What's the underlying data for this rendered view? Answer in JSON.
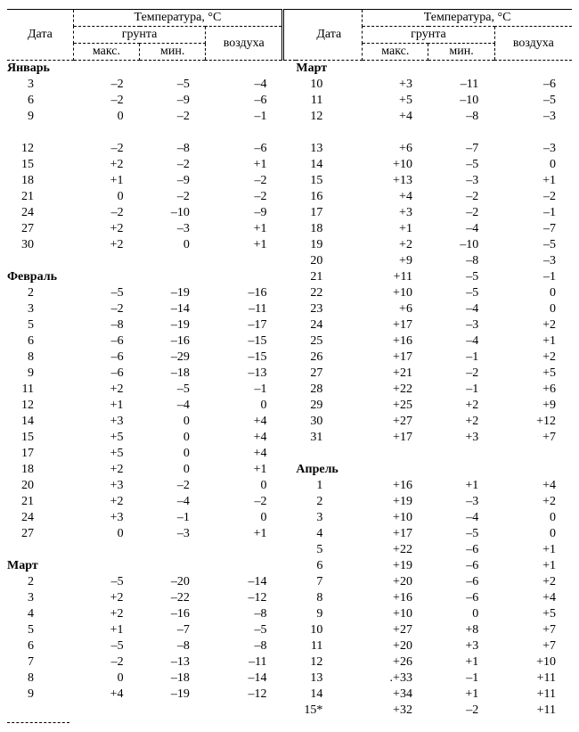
{
  "headers": {
    "date": "Дата",
    "temperature": "Температура, °С",
    "ground": "грунта",
    "air": "воздуха",
    "max": "макс.",
    "min": "мин."
  },
  "left": [
    {
      "month": "Январь"
    },
    {
      "day": "3",
      "max": "–2",
      "min": "–5",
      "air": "–4"
    },
    {
      "day": "6",
      "max": "–2",
      "min": "–9",
      "air": "–6"
    },
    {
      "day": "9",
      "max": "0",
      "min": "–2",
      "air": "–1"
    },
    {
      "gap": true
    },
    {
      "day": "12",
      "max": "–2",
      "min": "–8",
      "air": "–6"
    },
    {
      "day": "15",
      "max": "+2",
      "min": "–2",
      "air": "+1"
    },
    {
      "day": "18",
      "max": "+1",
      "min": "–9",
      "air": "–2"
    },
    {
      "day": "21",
      "max": "0",
      "min": "–2",
      "air": "–2"
    },
    {
      "day": "24",
      "max": "–2",
      "min": "–10",
      "air": "–9"
    },
    {
      "day": "27",
      "max": "+2",
      "min": "–3",
      "air": "+1"
    },
    {
      "day": "30",
      "max": "+2",
      "min": "0",
      "air": "+1"
    },
    {
      "gap": true
    },
    {
      "month": "Февраль"
    },
    {
      "day": "2",
      "max": "–5",
      "min": "–19",
      "air": "–16"
    },
    {
      "day": "3",
      "max": "–2",
      "min": "–14",
      "air": "–11"
    },
    {
      "day": "5",
      "max": "–8",
      "min": "–19",
      "air": "–17"
    },
    {
      "day": "6",
      "max": "–6",
      "min": "–16",
      "air": "–15"
    },
    {
      "day": "8",
      "max": "–6",
      "min": "–29",
      "air": "–15"
    },
    {
      "day": "9",
      "max": "–6",
      "min": "–18",
      "air": "–13"
    },
    {
      "day": "11",
      "max": "+2",
      "min": "–5",
      "air": "–1"
    },
    {
      "day": "12",
      "max": "+1",
      "min": "–4",
      "air": "0"
    },
    {
      "day": "14",
      "max": "+3",
      "min": "0",
      "air": "+4"
    },
    {
      "day": "15",
      "max": "+5",
      "min": "0",
      "air": "+4"
    },
    {
      "day": "17",
      "max": "+5",
      "min": "0",
      "air": "+4"
    },
    {
      "day": "18",
      "max": "+2",
      "min": "0",
      "air": "+1"
    },
    {
      "day": "20",
      "max": "+3",
      "min": "–2",
      "air": "0"
    },
    {
      "day": "21",
      "max": "+2",
      "min": "–4",
      "air": "–2"
    },
    {
      "day": "24",
      "max": "+3",
      "min": "–1",
      "air": "0"
    },
    {
      "day": "27",
      "max": "0",
      "min": "–3",
      "air": "+1"
    },
    {
      "gap": true
    },
    {
      "month": "Март"
    },
    {
      "day": "2",
      "max": "–5",
      "min": "–20",
      "air": "–14"
    },
    {
      "day": "3",
      "max": "+2",
      "min": "–22",
      "air": "–12"
    },
    {
      "day": "4",
      "max": "+2",
      "min": "–16",
      "air": "–8"
    },
    {
      "day": "5",
      "max": "+1",
      "min": "–7",
      "air": "–5"
    },
    {
      "day": "6",
      "max": "–5",
      "min": "–8",
      "air": "–8"
    },
    {
      "day": "7",
      "max": "–2",
      "min": "–13",
      "air": "–11"
    },
    {
      "day": "8",
      "max": "0",
      "min": "–18",
      "air": "–14"
    },
    {
      "day": "9",
      "max": "+4",
      "min": "–19",
      "air": "–12"
    }
  ],
  "right": [
    {
      "month": "Март"
    },
    {
      "day": "10",
      "max": "+3",
      "min": "–11",
      "air": "–6"
    },
    {
      "day": "11",
      "max": "+5",
      "min": "–10",
      "air": "–5"
    },
    {
      "day": "12",
      "max": "+4",
      "min": "–8",
      "air": "–3"
    },
    {
      "gap": true
    },
    {
      "day": "13",
      "max": "+6",
      "min": "–7",
      "air": "–3"
    },
    {
      "day": "14",
      "max": "+10",
      "min": "–5",
      "air": "0"
    },
    {
      "day": "15",
      "max": "+13",
      "min": "–3",
      "air": "+1"
    },
    {
      "day": "16",
      "max": "+4",
      "min": "–2",
      "air": "–2"
    },
    {
      "day": "17",
      "max": "+3",
      "min": "–2",
      "air": "–1"
    },
    {
      "day": "18",
      "max": "+1",
      "min": "–4",
      "air": "–7"
    },
    {
      "day": "19",
      "max": "+2",
      "min": "–10",
      "air": "–5"
    },
    {
      "day": "20",
      "max": "+9",
      "min": "–8",
      "air": "–3"
    },
    {
      "day": "21",
      "max": "+11",
      "min": "–5",
      "air": "–1"
    },
    {
      "day": "22",
      "max": "+10",
      "min": "–5",
      "air": "0"
    },
    {
      "day": "23",
      "max": "+6",
      "min": "–4",
      "air": "0"
    },
    {
      "day": "24",
      "max": "+17",
      "min": "–3",
      "air": "+2"
    },
    {
      "day": "25",
      "max": "+16",
      "min": "–4",
      "air": "+1"
    },
    {
      "day": "26",
      "max": "+17",
      "min": "–1",
      "air": "+2"
    },
    {
      "day": "27",
      "max": "+21",
      "min": "–2",
      "air": "+5"
    },
    {
      "day": "28",
      "max": "+22",
      "min": "–1",
      "air": "+6"
    },
    {
      "day": "29",
      "max": "+25",
      "min": "+2",
      "air": "+9"
    },
    {
      "day": "30",
      "max": "+27",
      "min": "+2",
      "air": "+12"
    },
    {
      "day": "31",
      "max": "+17",
      "min": "+3",
      "air": "+7"
    },
    {
      "gap": true
    },
    {
      "month": "Апрель"
    },
    {
      "day": "1",
      "max": "+16",
      "min": "+1",
      "air": "+4"
    },
    {
      "day": "2",
      "max": "+19",
      "min": "–3",
      "air": "+2"
    },
    {
      "day": "3",
      "max": "+10",
      "min": "–4",
      "air": "0"
    },
    {
      "day": "4",
      "max": "+17",
      "min": "–5",
      "air": "0"
    },
    {
      "day": "5",
      "max": "+22",
      "min": "–6",
      "air": "+1"
    },
    {
      "day": "6",
      "max": "+19",
      "min": "–6",
      "air": "+1"
    },
    {
      "day": "7",
      "max": "+20",
      "min": "–6",
      "air": "+2"
    },
    {
      "day": "8",
      "max": "+16",
      "min": "–6",
      "air": "+4"
    },
    {
      "day": "9",
      "max": "+10",
      "min": "0",
      "air": "+5"
    },
    {
      "day": "10",
      "max": "+27",
      "min": "+8",
      "air": "+7"
    },
    {
      "day": "11",
      "max": "+20",
      "min": "+3",
      "air": "+7"
    },
    {
      "day": "12",
      "max": "+26",
      "min": "+1",
      "air": "+10"
    },
    {
      "day": "13",
      "max": ".+33",
      "min": "–1",
      "air": "+11"
    },
    {
      "day": "14",
      "max": "+34",
      "min": "+1",
      "air": "+11"
    },
    {
      "day": "15*",
      "max": "+32",
      "min": "–2",
      "air": "+11"
    }
  ]
}
